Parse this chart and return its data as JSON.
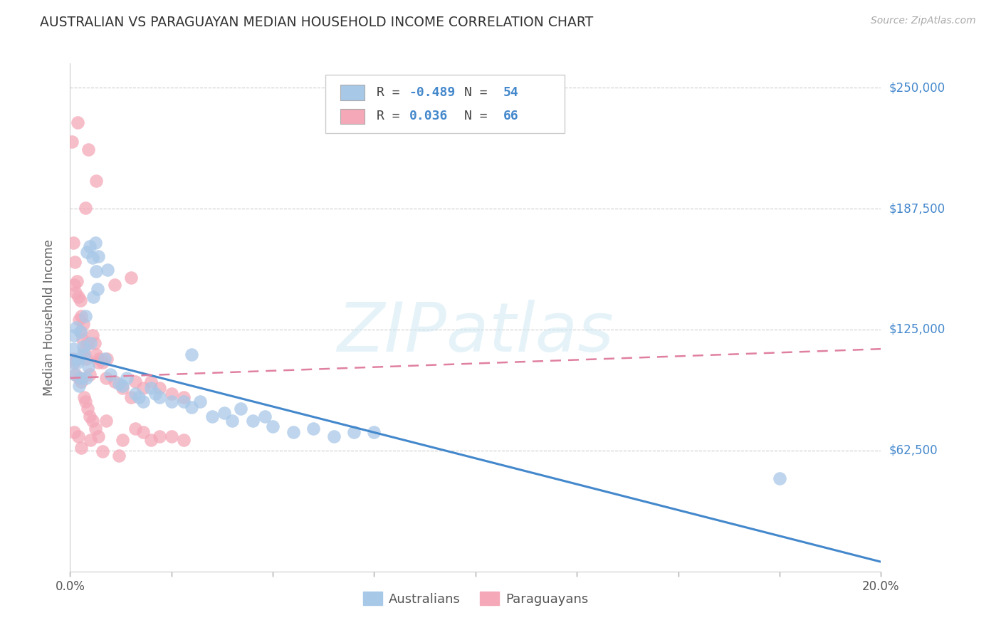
{
  "title": "AUSTRALIAN VS PARAGUAYAN MEDIAN HOUSEHOLD INCOME CORRELATION CHART",
  "source": "Source: ZipAtlas.com",
  "xlabel_ticks_labeled": [
    "0.0%",
    "20.0%"
  ],
  "xlabel_vals_labeled": [
    0.0,
    20.0
  ],
  "xlabel_ticks_all": [
    0.0,
    2.5,
    5.0,
    7.5,
    10.0,
    12.5,
    15.0,
    17.5,
    20.0
  ],
  "ylabel": "Median Household Income",
  "yticks": [
    0,
    62500,
    125000,
    187500,
    250000
  ],
  "ytick_labels": [
    "",
    "$62,500",
    "$125,000",
    "$187,500",
    "$250,000"
  ],
  "xlim": [
    0.0,
    20.0
  ],
  "ylim": [
    0,
    262500
  ],
  "legend_r1": "R = ",
  "legend_v1": "-0.489",
  "legend_n1": "  N = ",
  "legend_nv1": "54",
  "legend_r2": "R =  ",
  "legend_v2": "0.036",
  "legend_n2": "  N = ",
  "legend_nv2": "66",
  "blue_color": "#a8c8e8",
  "pink_color": "#f4a8b8",
  "blue_line_color": "#4488cc",
  "pink_line_color": "#e080a0",
  "text_blue": "#4488cc",
  "text_dark": "#444444",
  "watermark": "ZIPatlas",
  "australians_label": "Australians",
  "paraguayans_label": "Paraguayans",
  "blue_dots": [
    [
      0.05,
      108000
    ],
    [
      0.08,
      115000
    ],
    [
      0.12,
      102000
    ],
    [
      0.1,
      122000
    ],
    [
      0.18,
      108000
    ],
    [
      0.22,
      96000
    ],
    [
      0.28,
      100000
    ],
    [
      0.35,
      112000
    ],
    [
      0.42,
      165000
    ],
    [
      0.48,
      168000
    ],
    [
      0.55,
      162000
    ],
    [
      0.62,
      170000
    ],
    [
      0.7,
      163000
    ],
    [
      0.65,
      155000
    ],
    [
      0.38,
      132000
    ],
    [
      0.58,
      142000
    ],
    [
      0.68,
      146000
    ],
    [
      0.15,
      126000
    ],
    [
      0.2,
      110000
    ],
    [
      0.25,
      124000
    ],
    [
      0.32,
      116000
    ],
    [
      0.4,
      100000
    ],
    [
      0.45,
      106000
    ],
    [
      0.5,
      118000
    ],
    [
      0.85,
      110000
    ],
    [
      1.0,
      102000
    ],
    [
      1.3,
      96000
    ],
    [
      1.6,
      92000
    ],
    [
      1.8,
      88000
    ],
    [
      2.0,
      95000
    ],
    [
      2.2,
      90000
    ],
    [
      2.5,
      88000
    ],
    [
      2.8,
      88000
    ],
    [
      3.0,
      85000
    ],
    [
      3.2,
      88000
    ],
    [
      3.5,
      80000
    ],
    [
      3.8,
      82000
    ],
    [
      4.0,
      78000
    ],
    [
      4.2,
      84000
    ],
    [
      4.5,
      78000
    ],
    [
      4.8,
      80000
    ],
    [
      5.0,
      75000
    ],
    [
      5.5,
      72000
    ],
    [
      6.0,
      74000
    ],
    [
      6.5,
      70000
    ],
    [
      7.0,
      72000
    ],
    [
      7.5,
      72000
    ],
    [
      17.5,
      48000
    ],
    [
      0.92,
      156000
    ],
    [
      1.4,
      100000
    ],
    [
      1.7,
      90000
    ],
    [
      2.1,
      92000
    ],
    [
      1.2,
      97000
    ],
    [
      3.0,
      112000
    ]
  ],
  "pink_dots": [
    [
      0.05,
      222000
    ],
    [
      0.18,
      232000
    ],
    [
      0.45,
      218000
    ],
    [
      0.65,
      202000
    ],
    [
      0.38,
      188000
    ],
    [
      0.08,
      170000
    ],
    [
      0.1,
      148000
    ],
    [
      0.14,
      144000
    ],
    [
      0.16,
      150000
    ],
    [
      0.12,
      160000
    ],
    [
      0.2,
      142000
    ],
    [
      0.25,
      140000
    ],
    [
      0.28,
      132000
    ],
    [
      0.32,
      128000
    ],
    [
      0.22,
      130000
    ],
    [
      0.26,
      124000
    ],
    [
      0.3,
      120000
    ],
    [
      0.35,
      114000
    ],
    [
      0.4,
      110000
    ],
    [
      0.44,
      118000
    ],
    [
      0.55,
      122000
    ],
    [
      0.6,
      118000
    ],
    [
      0.65,
      112000
    ],
    [
      0.72,
      110000
    ],
    [
      0.8,
      108000
    ],
    [
      0.9,
      110000
    ],
    [
      1.1,
      148000
    ],
    [
      1.5,
      152000
    ],
    [
      1.6,
      98000
    ],
    [
      1.8,
      95000
    ],
    [
      2.0,
      98000
    ],
    [
      2.2,
      95000
    ],
    [
      2.5,
      92000
    ],
    [
      2.8,
      90000
    ],
    [
      0.48,
      102000
    ],
    [
      0.7,
      108000
    ],
    [
      0.88,
      100000
    ],
    [
      1.1,
      98000
    ],
    [
      1.3,
      95000
    ],
    [
      1.5,
      90000
    ],
    [
      0.06,
      110000
    ],
    [
      0.1,
      108000
    ],
    [
      0.14,
      102000
    ],
    [
      0.22,
      100000
    ],
    [
      0.28,
      98000
    ],
    [
      0.34,
      90000
    ],
    [
      0.38,
      88000
    ],
    [
      0.44,
      84000
    ],
    [
      0.48,
      80000
    ],
    [
      0.55,
      78000
    ],
    [
      0.62,
      74000
    ],
    [
      0.7,
      70000
    ],
    [
      0.88,
      78000
    ],
    [
      1.3,
      68000
    ],
    [
      1.8,
      72000
    ],
    [
      2.5,
      70000
    ],
    [
      2.8,
      68000
    ],
    [
      0.2,
      70000
    ],
    [
      0.8,
      62000
    ],
    [
      1.2,
      60000
    ],
    [
      2.0,
      68000
    ],
    [
      1.6,
      74000
    ],
    [
      2.2,
      70000
    ],
    [
      0.5,
      68000
    ],
    [
      0.1,
      72000
    ],
    [
      0.28,
      64000
    ]
  ],
  "blue_line_x": [
    0.0,
    20.0
  ],
  "blue_line_y": [
    112000,
    5000
  ],
  "pink_line_x": [
    0.0,
    20.0
  ],
  "pink_line_y": [
    100000,
    115000
  ],
  "background_color": "#ffffff",
  "grid_color": "#cccccc"
}
